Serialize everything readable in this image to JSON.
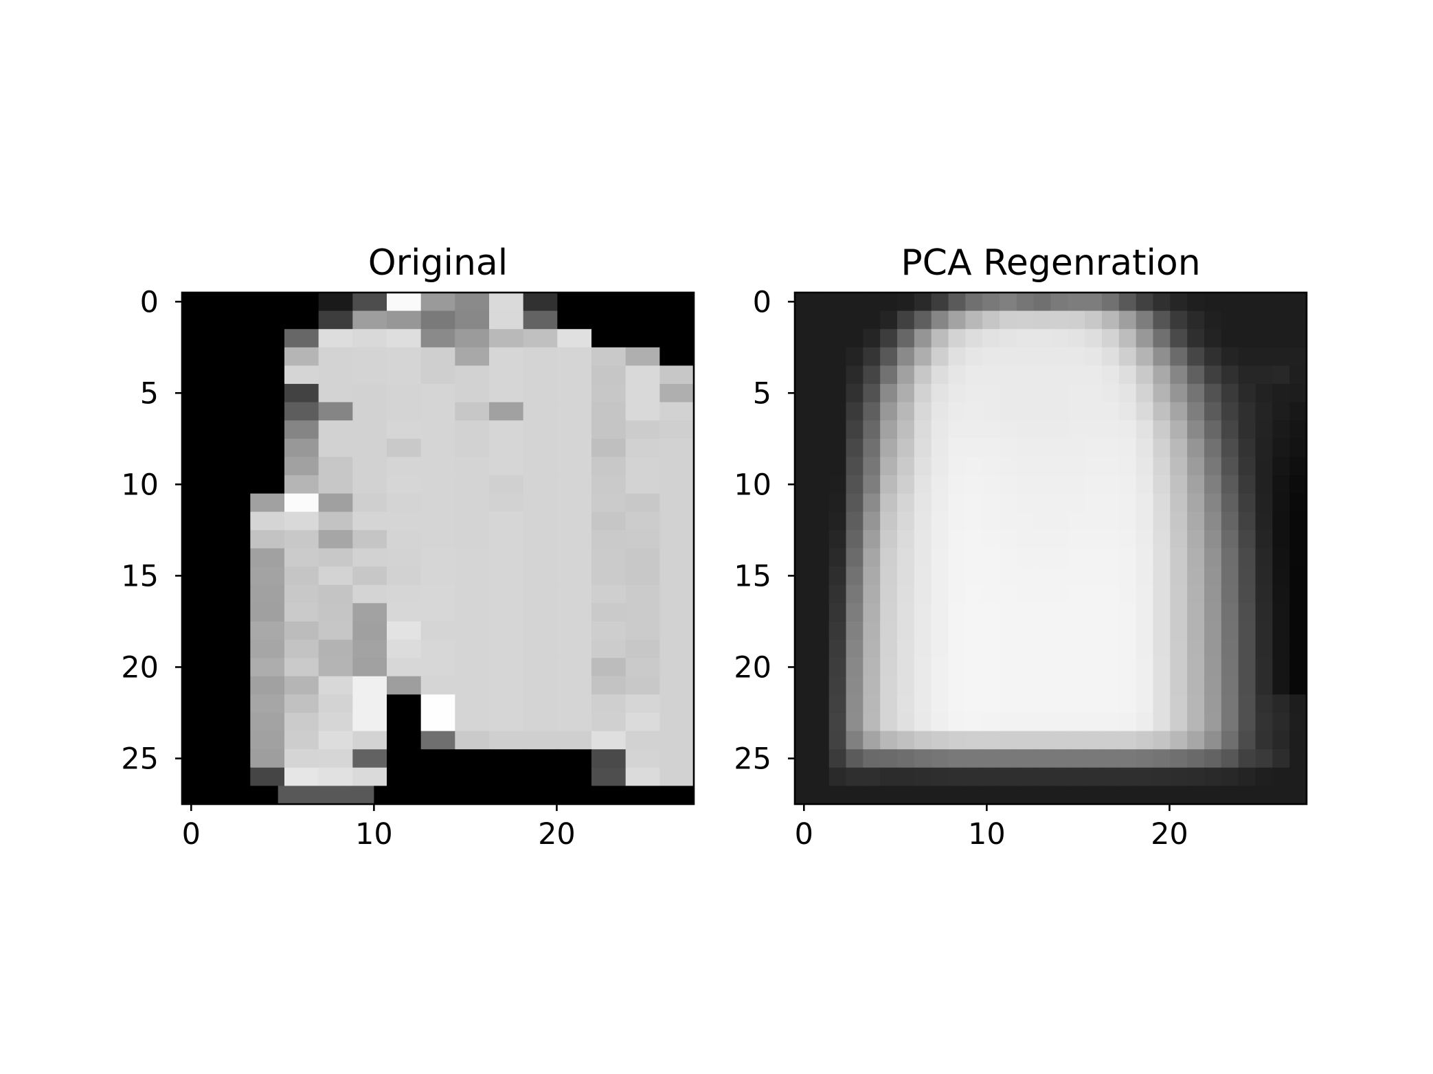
{
  "chart_data": [
    {
      "type": "heatmap",
      "title": "Original",
      "colormap": "gray",
      "xlim": [
        -0.5,
        27.5
      ],
      "ylim": [
        27.5,
        -0.5
      ],
      "xticks": [
        0,
        10,
        20
      ],
      "yticks": [
        0,
        5,
        10,
        15,
        20,
        25
      ],
      "grid": false,
      "values": [
        "000000001a4dfa9a8ada3100000000",
        "000000003d9e977a88d96300000000",
        "00000067ddd9de8a9bb9c0e0000000",
        "000000b5d3d4d5cfa8d6d4d5c9af00",
        "000000d5d3d4d5cfd2d6d4d5c6d9c7",
        "00000042d3d2d4d5d2d6d4d5c7d9af",
        "0000005d85d2d4d5c7a1d4d5c5d9d2",
        "00000085d2d2d6d5d2d6d4d5c5cccf",
        "00000098d2d2c9d5d2d6d4d5bfd1d2",
        "000000a1c7d2d5d5d4d6d4d5c8d3d2",
        "000000b5c7d2d6d5d4d0d4d5cad3d2",
        "0000a1fba0cfd4d5d4d2d4d5cbc8d2",
        "0000d5d9c3d5d5d5d4d6d4d5c6ccd2",
        "0000c3c8a6c5d4d5d4d6d4d5cacbd2",
        "0000a1cbc8d2d3d6d5d6d4d5cbc8d2",
        "0000a3c5d3c7d2d6d5d6d4d5cbc8d2",
        "0000a1c8c4d4d6d7d5d6d4d5cfcbd2",
        "0000a0cac5a2d7d7d5d6d4d5cacbd2",
        "0000a9bcc6a0e3d5d5d6d4d5cecbd2",
        "0000a6c3b3a3dcd7d5d6d4d5ccc7d2",
        "0000adcab4a1d7d7d5d6d4d5bccad2",
        "0000a1b5d8f09ed5d5d6d4d5c3c8d2",
        "0000a6c1d3f000fed5d6d4d5cfd6d2",
        "0000a3cbd6f000fed5d6d4d5d0dbd2",
        "0000a1cdddd3006fcacfcfcfdfd2d2",
        "00009ed5d6620000000000004ad4d2",
        "000045e6e1da0000000000004edbd2",
        "00000058585800000000000000000000"
      ]
    },
    {
      "type": "heatmap",
      "title": "PCA Regenration",
      "colormap": "gray",
      "xlim": [
        -0.5,
        27.5
      ],
      "ylim": [
        27.5,
        -0.5
      ],
      "xticks": [
        0,
        10,
        20
      ],
      "yticks": [
        0,
        5,
        10,
        15,
        20,
        25
      ],
      "grid": false,
      "values": [
        "1d1d1d1d1d1d1f2a3d5a70798076707a7d7d71594130261f1d1d1d1d1d1d",
        "1d1d1d1d1d24415f86a3b8c6cfd0cfd0cfc8b89f7d553a2a201d1d1d1d1d",
        "1d1d1d1d253d6795bcd3dde2e4e6e6e5e3ded3bd98704a2f231d1d1d1d1d",
        "1d1d1d2335588aaecfe0e6e8e8e8e8e8e8e6dfcfb48f6b46302420202020",
        "1d1d1d2a4572a1c7dde6eaeaeaeaeaeaeaeae7dec9a9866040302626281f",
        "1d1d1d31528aaed2e3e9ebebeaeaeaeaebebe9e4d3b49574523a2a221e1d",
        "1d1d1d3a5f98b8d8e6ebecebeaeaeaeaebebebe7dac0a57e5b402f241d18",
        "1d1d1d4168a2bedbe8edededecebebebecececebe2cbb18967462f231a15",
        "1d1d1d4870aac4dde9efefefeeededededeeeeede5d1b995714d33221813",
        "1d1d1d4e77b2cae0eaf0f1f0efeeeeeeeeefefeee7d5bd9c78533621150f",
        "1d1d1e537ebacfe3ecf1f2f1f0efefefeff0f0efe9d8c1a27f5a3a21130c",
        "1d1d20588bc2d5e5edf2f3f2f1f0f0f0f0f1f1f0ebdbc4a785603e22120a",
        "1d1d225e95c7d8e6eef2f3f2f1f1f0f0f1f1f1f0ebdcc6aa8a6542231109",
        "1d1d26649ecbdbe7eef3f4f3f2f1f1f1f2f2f2f1ecdec8ad8e6a46251109",
        "1d1d2a6ba6cfdde7eff3f4f4f3f2f2f2f3f3f3f2eddfcab0926e4a271209",
        "1d1d2e72aad0dde8eff3f4f4f3f3f3f3f3f3f3f2eddfcab1946f4b281308",
        "1d1d3278add1dee8eff3f5f4f4f3f3f3f4f4f4f2eedfcbb295704c291408",
        "1d1d357db0d2dfe9eff4f5f5f4f4f4f4f4f4f4f3eedfcbb396724e2a1508",
        "1d1d3881b2d3dfe9eff4f5f5f4f4f4f4f4f4f4f3eedfcbb397734f2b1508",
        "1d1d3b85b4d3e0e9eff4f5f5f4f4f4f4f4f4f4f3eedfccb497744f2b1508",
        "1d1d3d88b6d4e0eaf0f4f5f5f4f4f4f4f4f4f4f3efe0ccb598754f2c1508",
        "1d1d3f8ab7d5e0eaf0f4f5f5f4f4f4f4f4f4f4f3efe0ccb599764f2c1508",
        "1d1d418cb8d5e1eaf0f4f5f5f4f4f4f4f4f4f4f3efe0cdb69a775031281d",
        "1d1d438db9d5e0e9eff3f4f3f2f2f2f2f2f2f2f1ede0cdb69b7750332a1e",
        "1d1d4280a4b8c0c8cbcecfcfcececececececececac4b8a78f6f4c32281d",
        "1d1d3b5b6a6b6e737679797979797979797979797774706a6357413a2d1d",
        "1d1d2a2f2f2c2c2d2e2f2f2f2f2f2f2f2f2f2f2f2f2e2d2c2a28241f1d1d",
        "1d1d1d1d1d1d1d1d1d1d1d1d1d1d1d1d1d1d1d1d1d1d1d1d1d1d1d1d1d1d"
      ]
    }
  ]
}
